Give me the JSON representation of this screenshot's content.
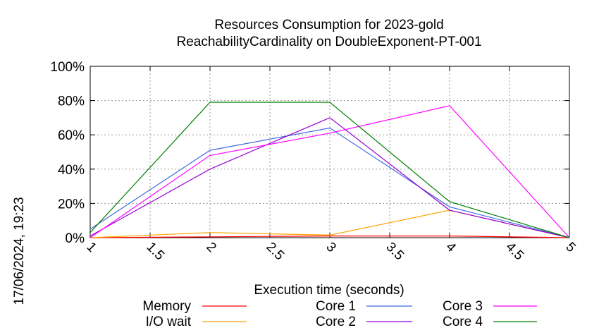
{
  "chart_data": {
    "type": "line",
    "title_line1": "Resources Consumption for 2023-gold",
    "title_line2": "ReachabilityCardinality on DoubleExponent-PT-001",
    "xlabel": "Execution time (seconds)",
    "ylabel": "",
    "side_label": "17/06/2024, 19:23",
    "xlim": [
      1,
      5
    ],
    "ylim": [
      0,
      100
    ],
    "x_ticks": [
      1,
      1.5,
      2,
      2.5,
      3,
      3.5,
      4,
      4.5,
      5
    ],
    "x_tick_labels": [
      "1",
      "1.5",
      "2",
      "2.5",
      "3",
      "3.5",
      "4",
      "4.5",
      "5"
    ],
    "y_ticks": [
      0,
      20,
      40,
      60,
      80,
      100
    ],
    "y_tick_labels": [
      "0%",
      "20%",
      "40%",
      "60%",
      "80%",
      "100%"
    ],
    "grid": true,
    "legend_position": "bottom",
    "series": [
      {
        "name": "Memory",
        "color": "#ff0000",
        "x": [
          1,
          2,
          3,
          4,
          5
        ],
        "y": [
          0,
          0.5,
          1,
          1,
          0
        ]
      },
      {
        "name": "I/O wait",
        "color": "#ffa500",
        "x": [
          1,
          2,
          3,
          4,
          5
        ],
        "y": [
          0,
          3,
          1.5,
          16,
          0
        ]
      },
      {
        "name": "Core 1",
        "color": "#4169e1",
        "x": [
          1,
          2,
          3,
          4,
          5
        ],
        "y": [
          5,
          51,
          64,
          18,
          0
        ]
      },
      {
        "name": "Core 2",
        "color": "#9400d3",
        "x": [
          1,
          2,
          3,
          4,
          5
        ],
        "y": [
          1,
          40,
          70,
          16,
          0
        ]
      },
      {
        "name": "Core 3",
        "color": "#ff00ff",
        "x": [
          1,
          2,
          3,
          4,
          5
        ],
        "y": [
          0,
          48,
          61,
          77,
          0
        ]
      },
      {
        "name": "Core 4",
        "color": "#008000",
        "x": [
          1,
          2,
          3,
          4,
          5
        ],
        "y": [
          3,
          79,
          79,
          21,
          0
        ]
      }
    ]
  }
}
